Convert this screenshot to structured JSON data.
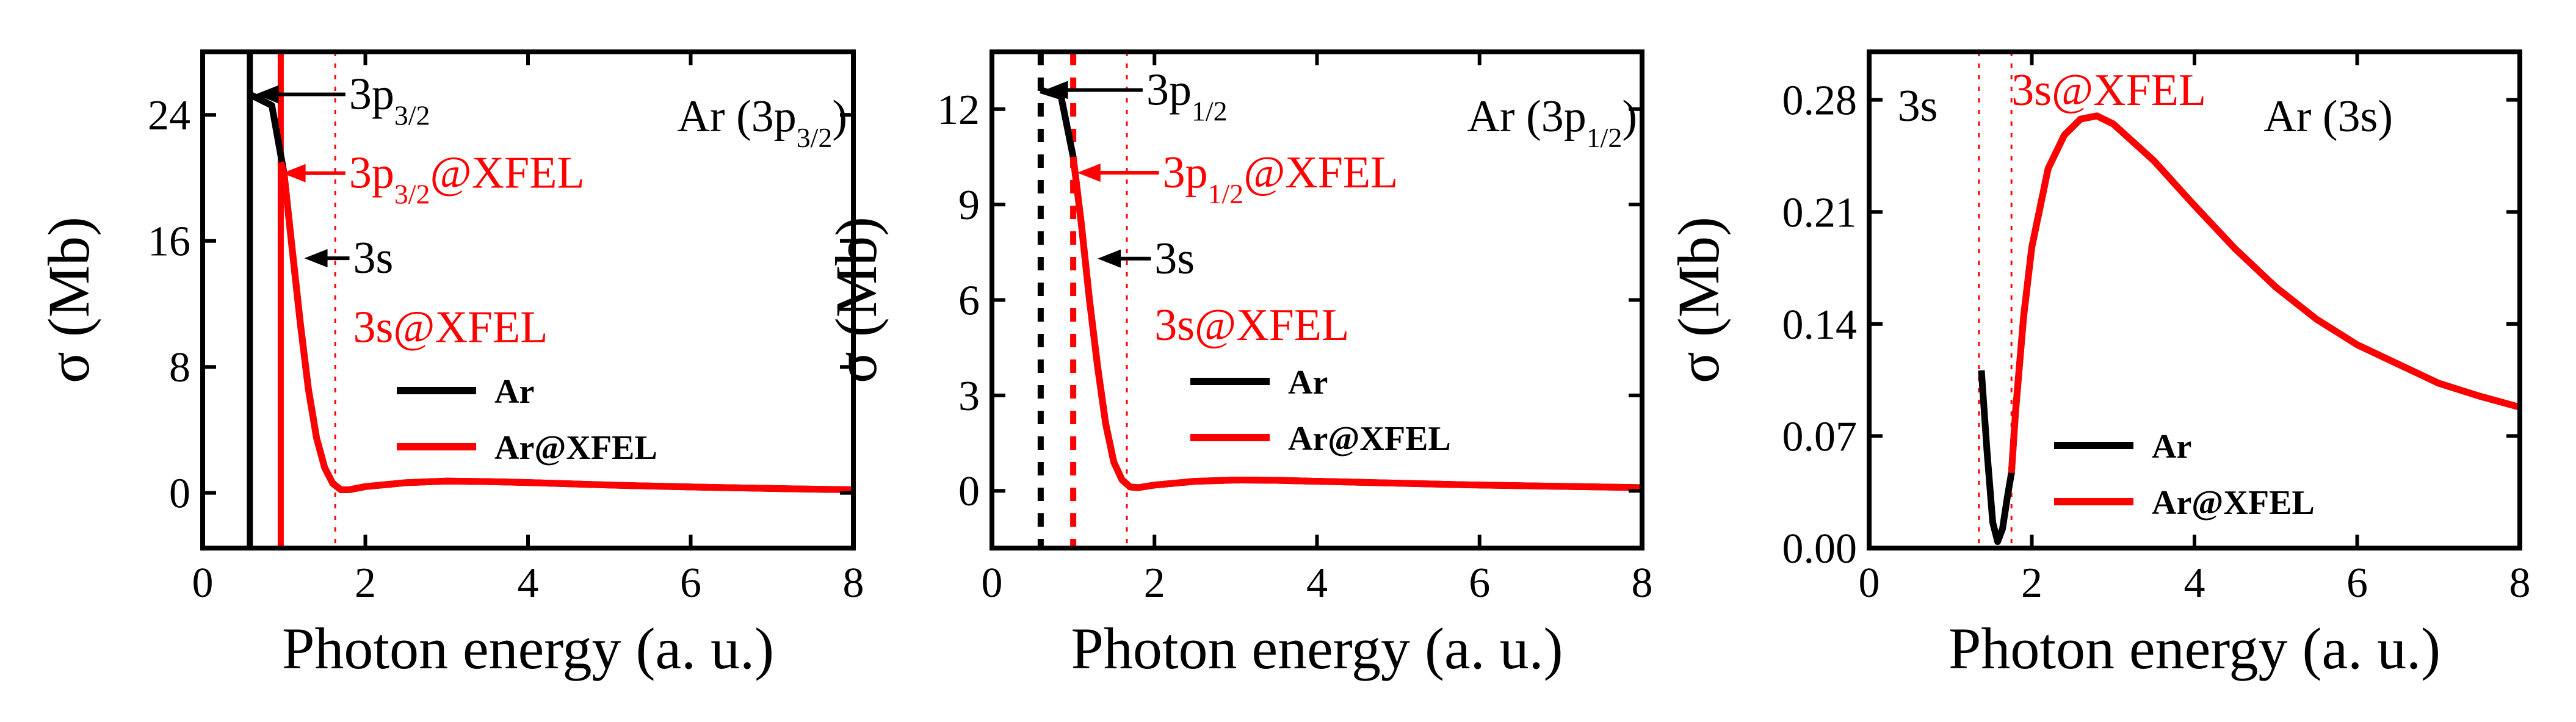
{
  "colors": {
    "ar": "#000000",
    "xfel": "#ff0000",
    "axis": "#000000"
  },
  "chart_data": [
    {
      "type": "line",
      "panel_label_main": "Ar (3p",
      "panel_label_sub": "3/2",
      "panel_label_end": ")",
      "xlabel": "Photon energy (a. u.)",
      "ylabel": "σ (Mb)",
      "xlim": [
        0,
        8
      ],
      "ylim": [
        -3.5,
        28
      ],
      "xticks": [
        0,
        2,
        4,
        6,
        8
      ],
      "xtick_labels": [
        "0",
        "2",
        "4",
        "6",
        "8"
      ],
      "yticks": [
        0,
        8,
        16,
        24
      ],
      "ytick_labels": [
        "0",
        "8",
        "16",
        "24"
      ],
      "legend": {
        "placement": "center-right",
        "entries": [
          "Ar",
          "Ar@XFEL"
        ]
      },
      "thresholds": [
        {
          "x": 0.58,
          "style": "solid",
          "color": "ar"
        },
        {
          "x": 0.96,
          "style": "solid",
          "color": "xfel"
        },
        {
          "x": 1.63,
          "style": "dotted",
          "color": "xfel"
        }
      ],
      "annotations": [
        {
          "main": "3p",
          "sub": "3/2",
          "suffix": "",
          "color": "ar",
          "x": 1.8,
          "y": 25.3,
          "arrow_to": [
            0.65,
            25.3
          ]
        },
        {
          "main": "3p",
          "sub": "3/2",
          "suffix": "@XFEL",
          "color": "xfel",
          "x": 1.8,
          "y": 20.3,
          "arrow_to": [
            0.98,
            20.3
          ]
        },
        {
          "main": "3s",
          "sub": "",
          "suffix": "",
          "color": "ar",
          "x": 1.85,
          "y": 14.9,
          "arrow_to": [
            1.25,
            14.9
          ]
        },
        {
          "main": "3s@XFEL",
          "sub": "",
          "suffix": "",
          "color": "xfel",
          "x": 1.85,
          "y": 10.5,
          "arrow_to": null
        }
      ],
      "series": [
        {
          "name": "Ar",
          "color": "ar",
          "x": [
            0.58,
            0.85,
            1.0,
            1.1,
            1.2,
            1.3,
            1.4,
            1.5,
            1.6,
            1.7,
            1.8,
            2.0,
            2.5,
            3.0,
            3.5,
            4.0,
            5.0,
            6.0,
            7.0,
            8.0
          ],
          "y": [
            25.3,
            24.6,
            20.3,
            15.5,
            10.8,
            6.6,
            3.5,
            1.6,
            0.6,
            0.2,
            0.2,
            0.4,
            0.65,
            0.75,
            0.72,
            0.66,
            0.5,
            0.38,
            0.28,
            0.2
          ]
        },
        {
          "name": "Ar@XFEL",
          "color": "xfel",
          "x": [
            0.96,
            1.0,
            1.1,
            1.2,
            1.3,
            1.4,
            1.5,
            1.6,
            1.7,
            1.8,
            2.0,
            2.5,
            3.0,
            3.5,
            4.0,
            5.0,
            6.0,
            7.0,
            8.0
          ],
          "y": [
            21.0,
            20.3,
            15.5,
            10.8,
            6.6,
            3.5,
            1.6,
            0.6,
            0.2,
            0.2,
            0.4,
            0.65,
            0.75,
            0.72,
            0.66,
            0.5,
            0.38,
            0.28,
            0.2
          ]
        }
      ]
    },
    {
      "type": "line",
      "panel_label_main": "Ar (3p",
      "panel_label_sub": "1/2",
      "panel_label_end": ")",
      "xlabel": "Photon energy (a. u.)",
      "ylabel": "σ (Mb)",
      "xlim": [
        0,
        8
      ],
      "ylim": [
        -1.8,
        13.8
      ],
      "xticks": [
        0,
        2,
        4,
        6,
        8
      ],
      "xtick_labels": [
        "0",
        "2",
        "4",
        "6",
        "8"
      ],
      "yticks": [
        0,
        3,
        6,
        9,
        12
      ],
      "ytick_labels": [
        "0",
        "3",
        "6",
        "9",
        "12"
      ],
      "legend": {
        "placement": "center-right",
        "entries": [
          "Ar",
          "Ar@XFEL"
        ]
      },
      "thresholds": [
        {
          "x": 0.6,
          "style": "dashed",
          "color": "ar"
        },
        {
          "x": 1.0,
          "style": "dashed",
          "color": "xfel"
        },
        {
          "x": 1.66,
          "style": "dotted",
          "color": "xfel"
        }
      ],
      "annotations": [
        {
          "main": "3p",
          "sub": "1/2",
          "suffix": "",
          "color": "ar",
          "x": 1.9,
          "y": 12.6,
          "arrow_to": [
            0.65,
            12.6
          ]
        },
        {
          "main": "3p",
          "sub": "1/2",
          "suffix": "@XFEL",
          "color": "xfel",
          "x": 2.1,
          "y": 10.0,
          "arrow_to": [
            1.05,
            10.0
          ]
        },
        {
          "main": "3s",
          "sub": "",
          "suffix": "",
          "color": "ar",
          "x": 2.0,
          "y": 7.3,
          "arrow_to": [
            1.3,
            7.3
          ]
        },
        {
          "main": "3s@XFEL",
          "sub": "",
          "suffix": "",
          "color": "xfel",
          "x": 2.0,
          "y": 5.2,
          "arrow_to": null
        }
      ],
      "series": [
        {
          "name": "Ar",
          "color": "ar",
          "x": [
            0.6,
            0.85,
            1.0,
            1.1,
            1.2,
            1.3,
            1.4,
            1.5,
            1.6,
            1.7,
            1.8,
            2.0,
            2.5,
            3.0,
            3.5,
            4.0,
            5.0,
            6.0,
            7.0,
            8.0
          ],
          "y": [
            12.6,
            12.4,
            10.5,
            8.4,
            6.0,
            3.9,
            2.1,
            0.9,
            0.35,
            0.12,
            0.1,
            0.18,
            0.3,
            0.34,
            0.33,
            0.3,
            0.24,
            0.18,
            0.14,
            0.1
          ]
        },
        {
          "name": "Ar@XFEL",
          "color": "xfel",
          "x": [
            1.0,
            1.1,
            1.2,
            1.3,
            1.4,
            1.5,
            1.6,
            1.7,
            1.8,
            2.0,
            2.5,
            3.0,
            3.5,
            4.0,
            5.0,
            6.0,
            7.0,
            8.0
          ],
          "y": [
            10.5,
            8.4,
            6.0,
            3.9,
            2.1,
            0.9,
            0.35,
            0.12,
            0.1,
            0.18,
            0.3,
            0.34,
            0.33,
            0.3,
            0.24,
            0.18,
            0.14,
            0.1
          ]
        }
      ]
    },
    {
      "type": "line",
      "panel_label_main": "Ar (3s)",
      "panel_label_sub": "",
      "panel_label_end": "",
      "xlabel": "Photon energy (a. u.)",
      "ylabel": "σ (Mb)",
      "xlim": [
        0,
        8
      ],
      "ylim": [
        0,
        0.31
      ],
      "xticks": [
        0,
        2,
        4,
        6,
        8
      ],
      "xtick_labels": [
        "0",
        "2",
        "4",
        "6",
        "8"
      ],
      "yticks": [
        0,
        0.07,
        0.14,
        0.21,
        0.28
      ],
      "ytick_labels": [
        "0.00",
        "0.07",
        "0.14",
        "0.21",
        "0.28"
      ],
      "legend": {
        "placement": "lower-left",
        "entries": [
          "Ar",
          "Ar@XFEL"
        ]
      },
      "thresholds": [
        {
          "x": 1.35,
          "style": "dotted",
          "color": "xfel"
        },
        {
          "x": 1.75,
          "style": "dotted",
          "color": "xfel"
        }
      ],
      "annotations": [
        {
          "main": "3s",
          "sub": "",
          "suffix": "",
          "color": "ar",
          "x": 0.35,
          "y": 0.276,
          "arrow_to": null
        },
        {
          "main": "3s@XFEL",
          "sub": "",
          "suffix": "",
          "color": "xfel",
          "x": 1.75,
          "y": 0.286,
          "arrow_to": null
        }
      ],
      "series": [
        {
          "name": "Ar",
          "color": "ar",
          "x": [
            1.38,
            1.45,
            1.52,
            1.58,
            1.64,
            1.7,
            1.75,
            1.8,
            1.9,
            2.0,
            2.2,
            2.4,
            2.6,
            2.8,
            3.0,
            3.5,
            4.0,
            4.5,
            5.0,
            5.5,
            6.0,
            6.5,
            7.0,
            7.5,
            8.0
          ],
          "y": [
            0.111,
            0.06,
            0.016,
            0.004,
            0.012,
            0.032,
            0.047,
            0.085,
            0.145,
            0.188,
            0.237,
            0.258,
            0.268,
            0.27,
            0.265,
            0.242,
            0.214,
            0.187,
            0.163,
            0.143,
            0.127,
            0.115,
            0.103,
            0.095,
            0.088
          ]
        },
        {
          "name": "Ar@XFEL",
          "color": "xfel",
          "x": [
            1.75,
            1.8,
            1.9,
            2.0,
            2.2,
            2.4,
            2.6,
            2.8,
            3.0,
            3.5,
            4.0,
            4.5,
            5.0,
            5.5,
            6.0,
            6.5,
            7.0,
            7.5,
            8.0
          ],
          "y": [
            0.047,
            0.085,
            0.145,
            0.188,
            0.237,
            0.258,
            0.268,
            0.27,
            0.265,
            0.242,
            0.214,
            0.187,
            0.163,
            0.143,
            0.127,
            0.115,
            0.103,
            0.095,
            0.088
          ]
        }
      ]
    }
  ]
}
